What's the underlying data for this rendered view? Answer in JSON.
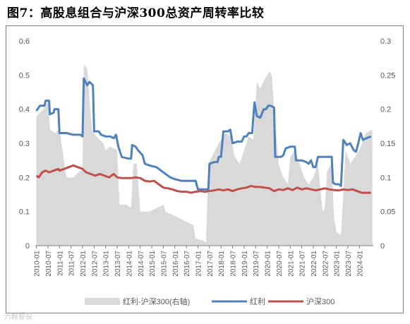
{
  "title": "图7：高股息组合与沪深300总资产周转率比较",
  "watermark": "六鲸智投",
  "chart_data": {
    "type": "line",
    "x_ticks": [
      "2010-01",
      "2010-07",
      "2011-01",
      "2011-07",
      "2012-01",
      "2012-07",
      "2013-01",
      "2013-07",
      "2014-01",
      "2014-07",
      "2015-01",
      "2015-07",
      "2016-01",
      "2016-07",
      "2017-01",
      "2017-07",
      "2018-01",
      "2018-07",
      "2019-01",
      "2019-07",
      "2020-01",
      "2020-07",
      "2021-01",
      "2021-07",
      "2022-01",
      "2022-07",
      "2023-01",
      "2023-07",
      "2024-01"
    ],
    "y_left": {
      "min": 0,
      "max": 0.6,
      "ticks": [
        "0",
        "0.1",
        "0.2",
        "0.3",
        "0.4",
        "0.5",
        "0.6"
      ]
    },
    "y_right": {
      "min": 0,
      "max": 0.3,
      "ticks": [
        "0",
        "0.05",
        "0.1",
        "0.15",
        "0.2",
        "0.25",
        "0.3"
      ]
    },
    "grid": false,
    "legend_position": "bottom",
    "series": [
      {
        "name": "红利-沪深300(右轴)",
        "type": "area",
        "axis": "right",
        "color": "#d9d9d9",
        "points": [
          [
            2010.0,
            0.19
          ],
          [
            2010.3,
            0.2
          ],
          [
            2010.5,
            0.21
          ],
          [
            2010.6,
            0.17
          ],
          [
            2010.8,
            0.165
          ],
          [
            2011.0,
            0.17
          ],
          [
            2011.3,
            0.1
          ],
          [
            2011.6,
            0.1
          ],
          [
            2011.9,
            0.11
          ],
          [
            2012.0,
            0.11
          ],
          [
            2012.05,
            0.265
          ],
          [
            2012.2,
            0.26
          ],
          [
            2012.4,
            0.17
          ],
          [
            2012.6,
            0.16
          ],
          [
            2012.9,
            0.15
          ],
          [
            2013.0,
            0.14
          ],
          [
            2013.2,
            0.145
          ],
          [
            2013.5,
            0.14
          ],
          [
            2013.6,
            0.06
          ],
          [
            2013.9,
            0.06
          ],
          [
            2014.1,
            0.055
          ],
          [
            2014.2,
            0.12
          ],
          [
            2014.35,
            0.12
          ],
          [
            2014.5,
            0.05
          ],
          [
            2014.9,
            0.05
          ],
          [
            2015.2,
            0.055
          ],
          [
            2015.5,
            0.06
          ],
          [
            2015.6,
            0.05
          ],
          [
            2015.9,
            0.045
          ],
          [
            2016.2,
            0.04
          ],
          [
            2016.5,
            0.035
          ],
          [
            2016.8,
            0.03
          ],
          [
            2016.9,
            0.01
          ],
          [
            2017.2,
            0.008
          ],
          [
            2017.35,
            0.005
          ],
          [
            2017.45,
            0.12
          ],
          [
            2017.6,
            0.13
          ],
          [
            2017.9,
            0.15
          ],
          [
            2018.2,
            0.165
          ],
          [
            2018.4,
            0.16
          ],
          [
            2018.6,
            0.13
          ],
          [
            2018.8,
            0.12
          ],
          [
            2019.0,
            0.14
          ],
          [
            2019.2,
            0.16
          ],
          [
            2019.4,
            0.155
          ],
          [
            2019.55,
            0.24
          ],
          [
            2019.7,
            0.23
          ],
          [
            2019.9,
            0.245
          ],
          [
            2020.1,
            0.255
          ],
          [
            2020.2,
            0.25
          ],
          [
            2020.3,
            0.2
          ],
          [
            2020.5,
            0.12
          ],
          [
            2020.7,
            0.1
          ],
          [
            2020.9,
            0.09
          ],
          [
            2021.0,
            0.13
          ],
          [
            2021.2,
            0.14
          ],
          [
            2021.4,
            0.12
          ],
          [
            2021.6,
            0.1
          ],
          [
            2021.8,
            0.09
          ],
          [
            2022.0,
            0.1
          ],
          [
            2022.2,
            0.12
          ],
          [
            2022.4,
            0.05
          ],
          [
            2022.5,
            0.055
          ],
          [
            2022.6,
            0.11
          ],
          [
            2022.8,
            0.12
          ],
          [
            2022.9,
            0.04
          ],
          [
            2023.0,
            0.02
          ],
          [
            2023.2,
            0.015
          ],
          [
            2023.4,
            0.14
          ],
          [
            2023.6,
            0.12
          ],
          [
            2023.8,
            0.13
          ],
          [
            2024.0,
            0.14
          ],
          [
            2024.2,
            0.16
          ],
          [
            2024.3,
            0.165
          ],
          [
            2024.5,
            0.17
          ],
          [
            2024.56,
            0.17
          ]
        ]
      },
      {
        "name": "红利",
        "type": "line",
        "axis": "left",
        "color": "#4f81bd",
        "points": [
          [
            2010.0,
            0.395
          ],
          [
            2010.15,
            0.41
          ],
          [
            2010.35,
            0.41
          ],
          [
            2010.4,
            0.425
          ],
          [
            2010.55,
            0.425
          ],
          [
            2010.58,
            0.385
          ],
          [
            2010.75,
            0.39
          ],
          [
            2010.78,
            0.4
          ],
          [
            2010.95,
            0.4
          ],
          [
            2011.0,
            0.33
          ],
          [
            2011.3,
            0.33
          ],
          [
            2011.6,
            0.325
          ],
          [
            2011.9,
            0.325
          ],
          [
            2012.0,
            0.32
          ],
          [
            2012.05,
            0.49
          ],
          [
            2012.2,
            0.47
          ],
          [
            2012.3,
            0.48
          ],
          [
            2012.45,
            0.47
          ],
          [
            2012.5,
            0.335
          ],
          [
            2012.7,
            0.335
          ],
          [
            2012.8,
            0.325
          ],
          [
            2013.0,
            0.32
          ],
          [
            2013.2,
            0.32
          ],
          [
            2013.35,
            0.315
          ],
          [
            2013.45,
            0.325
          ],
          [
            2013.55,
            0.29
          ],
          [
            2013.7,
            0.26
          ],
          [
            2014.0,
            0.255
          ],
          [
            2014.1,
            0.255
          ],
          [
            2014.15,
            0.295
          ],
          [
            2014.3,
            0.29
          ],
          [
            2014.4,
            0.28
          ],
          [
            2014.6,
            0.265
          ],
          [
            2014.7,
            0.24
          ],
          [
            2014.9,
            0.235
          ],
          [
            2015.2,
            0.23
          ],
          [
            2015.4,
            0.22
          ],
          [
            2015.6,
            0.21
          ],
          [
            2015.8,
            0.2
          ],
          [
            2016.0,
            0.195
          ],
          [
            2016.3,
            0.19
          ],
          [
            2016.6,
            0.19
          ],
          [
            2016.9,
            0.19
          ],
          [
            2017.0,
            0.165
          ],
          [
            2017.3,
            0.165
          ],
          [
            2017.45,
            0.165
          ],
          [
            2017.5,
            0.24
          ],
          [
            2017.7,
            0.245
          ],
          [
            2017.85,
            0.245
          ],
          [
            2017.9,
            0.26
          ],
          [
            2018.0,
            0.26
          ],
          [
            2018.1,
            0.335
          ],
          [
            2018.3,
            0.335
          ],
          [
            2018.4,
            0.34
          ],
          [
            2018.5,
            0.3
          ],
          [
            2018.7,
            0.305
          ],
          [
            2018.9,
            0.305
          ],
          [
            2019.0,
            0.32
          ],
          [
            2019.1,
            0.32
          ],
          [
            2019.2,
            0.33
          ],
          [
            2019.35,
            0.33
          ],
          [
            2019.45,
            0.42
          ],
          [
            2019.55,
            0.38
          ],
          [
            2019.7,
            0.375
          ],
          [
            2019.85,
            0.4
          ],
          [
            2019.95,
            0.4
          ],
          [
            2020.05,
            0.41
          ],
          [
            2020.15,
            0.41
          ],
          [
            2020.3,
            0.405
          ],
          [
            2020.35,
            0.26
          ],
          [
            2020.6,
            0.26
          ],
          [
            2020.7,
            0.265
          ],
          [
            2020.8,
            0.285
          ],
          [
            2021.0,
            0.29
          ],
          [
            2021.2,
            0.29
          ],
          [
            2021.25,
            0.25
          ],
          [
            2021.5,
            0.25
          ],
          [
            2021.7,
            0.245
          ],
          [
            2021.8,
            0.24
          ],
          [
            2021.9,
            0.25
          ],
          [
            2022.0,
            0.23
          ],
          [
            2022.1,
            0.23
          ],
          [
            2022.2,
            0.26
          ],
          [
            2022.5,
            0.26
          ],
          [
            2022.7,
            0.26
          ],
          [
            2022.8,
            0.26
          ],
          [
            2022.85,
            0.185
          ],
          [
            2022.95,
            0.18
          ],
          [
            2023.1,
            0.18
          ],
          [
            2023.2,
            0.175
          ],
          [
            2023.3,
            0.31
          ],
          [
            2023.45,
            0.295
          ],
          [
            2023.6,
            0.3
          ],
          [
            2023.75,
            0.28
          ],
          [
            2023.85,
            0.275
          ],
          [
            2023.95,
            0.3
          ],
          [
            2024.05,
            0.33
          ],
          [
            2024.15,
            0.31
          ],
          [
            2024.3,
            0.315
          ],
          [
            2024.5,
            0.32
          ]
        ]
      },
      {
        "name": "沪深300",
        "type": "line",
        "axis": "left",
        "color": "#c0504d",
        "points": [
          [
            2010.0,
            0.205
          ],
          [
            2010.1,
            0.2
          ],
          [
            2010.25,
            0.215
          ],
          [
            2010.4,
            0.22
          ],
          [
            2010.55,
            0.215
          ],
          [
            2010.75,
            0.22
          ],
          [
            2010.95,
            0.225
          ],
          [
            2011.0,
            0.22
          ],
          [
            2011.2,
            0.225
          ],
          [
            2011.4,
            0.23
          ],
          [
            2011.6,
            0.235
          ],
          [
            2011.8,
            0.23
          ],
          [
            2012.0,
            0.225
          ],
          [
            2012.15,
            0.215
          ],
          [
            2012.35,
            0.21
          ],
          [
            2012.55,
            0.205
          ],
          [
            2012.75,
            0.21
          ],
          [
            2012.95,
            0.205
          ],
          [
            2013.15,
            0.2
          ],
          [
            2013.35,
            0.21
          ],
          [
            2013.5,
            0.2
          ],
          [
            2013.7,
            0.198
          ],
          [
            2013.9,
            0.198
          ],
          [
            2014.1,
            0.198
          ],
          [
            2014.3,
            0.2
          ],
          [
            2014.5,
            0.198
          ],
          [
            2014.7,
            0.19
          ],
          [
            2014.9,
            0.188
          ],
          [
            2015.1,
            0.19
          ],
          [
            2015.3,
            0.18
          ],
          [
            2015.5,
            0.17
          ],
          [
            2015.7,
            0.168
          ],
          [
            2015.9,
            0.165
          ],
          [
            2016.1,
            0.16
          ],
          [
            2016.3,
            0.158
          ],
          [
            2016.5,
            0.158
          ],
          [
            2016.7,
            0.155
          ],
          [
            2016.9,
            0.158
          ],
          [
            2017.1,
            0.16
          ],
          [
            2017.3,
            0.158
          ],
          [
            2017.5,
            0.16
          ],
          [
            2017.7,
            0.162
          ],
          [
            2017.9,
            0.165
          ],
          [
            2018.1,
            0.162
          ],
          [
            2018.3,
            0.165
          ],
          [
            2018.5,
            0.16
          ],
          [
            2018.7,
            0.165
          ],
          [
            2018.9,
            0.168
          ],
          [
            2019.1,
            0.17
          ],
          [
            2019.3,
            0.175
          ],
          [
            2019.5,
            0.172
          ],
          [
            2019.7,
            0.172
          ],
          [
            2019.9,
            0.17
          ],
          [
            2020.1,
            0.168
          ],
          [
            2020.3,
            0.16
          ],
          [
            2020.5,
            0.165
          ],
          [
            2020.7,
            0.163
          ],
          [
            2020.9,
            0.168
          ],
          [
            2021.1,
            0.163
          ],
          [
            2021.3,
            0.17
          ],
          [
            2021.5,
            0.165
          ],
          [
            2021.7,
            0.168
          ],
          [
            2021.9,
            0.165
          ],
          [
            2022.1,
            0.162
          ],
          [
            2022.3,
            0.165
          ],
          [
            2022.5,
            0.168
          ],
          [
            2022.7,
            0.165
          ],
          [
            2022.9,
            0.163
          ],
          [
            2023.1,
            0.162
          ],
          [
            2023.3,
            0.165
          ],
          [
            2023.5,
            0.163
          ],
          [
            2023.7,
            0.165
          ],
          [
            2023.9,
            0.16
          ],
          [
            2024.1,
            0.155
          ],
          [
            2024.3,
            0.155
          ],
          [
            2024.5,
            0.155
          ]
        ]
      }
    ]
  }
}
